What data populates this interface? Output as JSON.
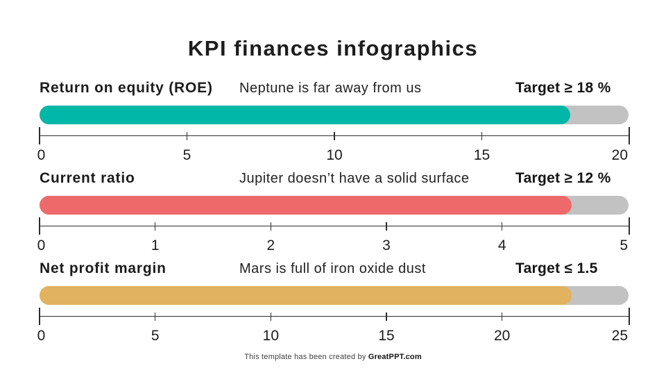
{
  "title": "KPI finances infographics",
  "track_color": "#c2c2c3",
  "rows": [
    {
      "label": "Return on equity (ROE)",
      "note": "Neptune is far away from us",
      "target": "Target ≥ 18 %",
      "color": "#00b7a8",
      "value": 18,
      "axis_max": 20,
      "tick_values": [
        0,
        5,
        10,
        15,
        20
      ],
      "ticks": [
        "0",
        "5",
        "10",
        "15",
        "20"
      ]
    },
    {
      "label": "Current ratio",
      "note": "Jupiter doesn’t have a solid surface",
      "target": "Target ≥ 12 %",
      "color": "#ee6a6a",
      "value": 4.6,
      "axis_max": 5.1,
      "tick_values": [
        0,
        1,
        2,
        3,
        4,
        5
      ],
      "ticks": [
        "0",
        "1",
        "2",
        "3",
        "4",
        "5"
      ]
    },
    {
      "label": "Net profit margin",
      "note": "Mars is full of iron oxide dust",
      "target": "Target ≤ 1.5",
      "color": "#e2b35e",
      "value": 23,
      "axis_max": 25.5,
      "tick_values": [
        0,
        5,
        10,
        15,
        20,
        25
      ],
      "ticks": [
        "0",
        "5",
        "10",
        "15",
        "20",
        "25"
      ]
    }
  ],
  "footer": {
    "prefix": "This template has been created by ",
    "brand": "GreatPPT.com"
  }
}
